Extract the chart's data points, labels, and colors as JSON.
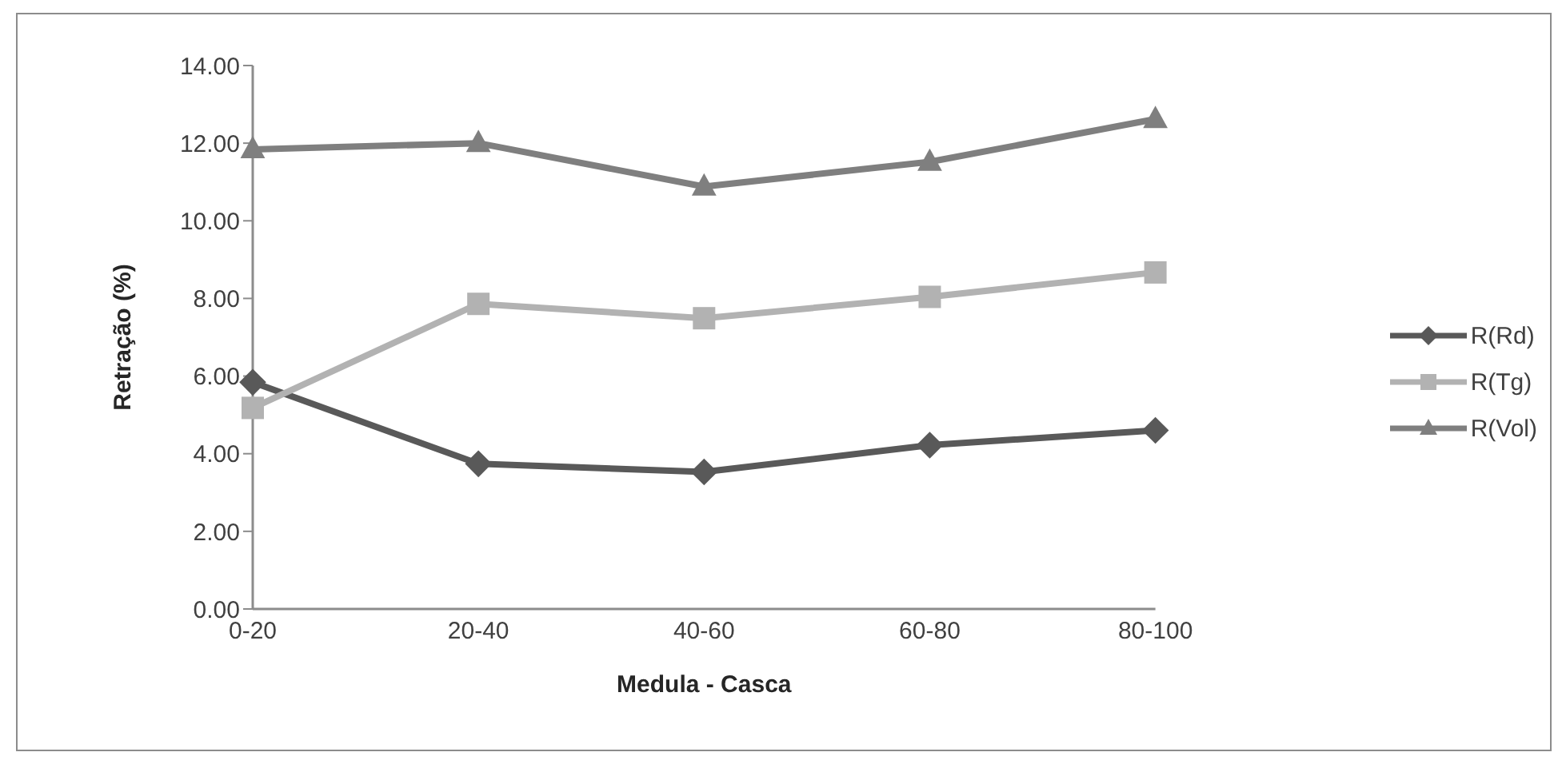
{
  "chart_data": {
    "type": "line",
    "xlabel": "Medula - Casca",
    "ylabel": "Retração (%)",
    "categories": [
      "0-20",
      "20-40",
      "40-60",
      "60-80",
      "80-100"
    ],
    "series": [
      {
        "name": "R(Rd)",
        "color": "#595959",
        "marker": "diamond",
        "values": [
          5.84,
          3.74,
          3.53,
          4.22,
          4.6
        ]
      },
      {
        "name": "R(Tg)",
        "color": "#b2b2b2",
        "marker": "square",
        "values": [
          5.18,
          7.86,
          7.49,
          8.04,
          8.67
        ]
      },
      {
        "name": "R(Vol)",
        "color": "#7f7f7f",
        "marker": "triangle",
        "values": [
          11.84,
          12.0,
          10.88,
          11.52,
          12.62
        ]
      }
    ],
    "ylim": [
      0,
      14
    ],
    "yticks": [
      {
        "value": 0,
        "label": "0.00"
      },
      {
        "value": 2,
        "label": "2.00"
      },
      {
        "value": 4,
        "label": "4.00"
      },
      {
        "value": 6,
        "label": "6.00"
      },
      {
        "value": 8,
        "label": "8.00"
      },
      {
        "value": 10,
        "label": "10.00"
      },
      {
        "value": 12,
        "label": "12.00"
      },
      {
        "value": 14,
        "label": "14.00"
      }
    ],
    "grid": false,
    "legend": "right",
    "line_style": "solid"
  }
}
